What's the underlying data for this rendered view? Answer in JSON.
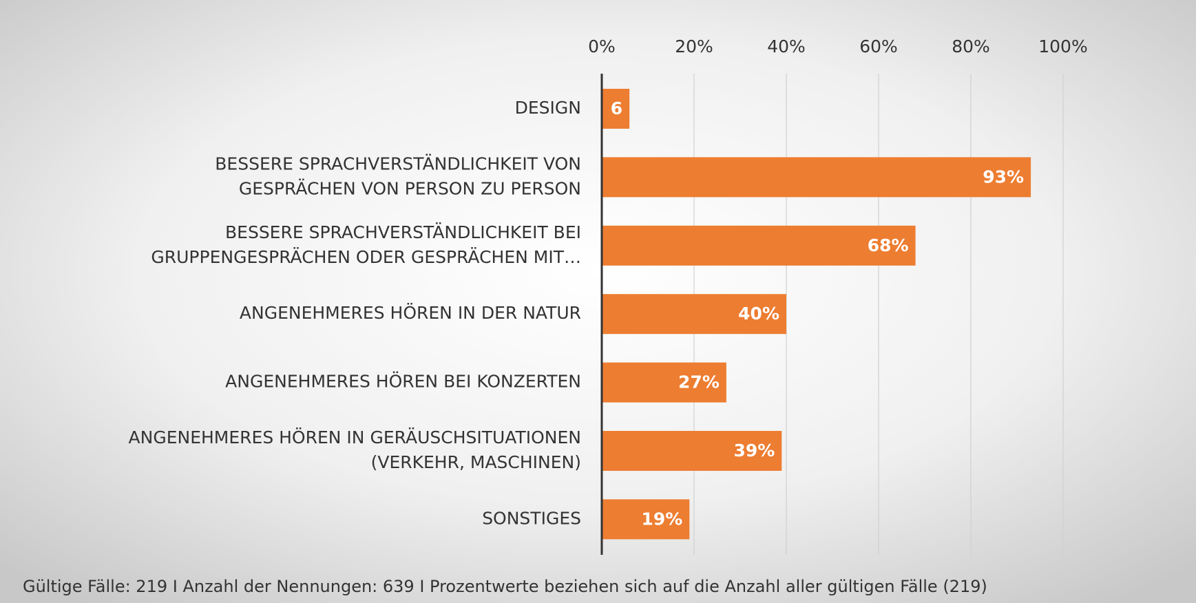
{
  "chart_data": {
    "type": "bar",
    "orientation": "horizontal",
    "categories": [
      [
        "DESIGN"
      ],
      [
        "BESSERE SPRACHVERSTÄNDLICHKEIT VON",
        "GESPRÄCHEN VON PERSON ZU PERSON"
      ],
      [
        "BESSERE SPRACHVERSTÄNDLICHKEIT BEI",
        "GRUPPENGESPRÄCHEN ODER GESPRÄCHEN MIT…"
      ],
      [
        "ANGENEHMERES HÖREN IN DER NATUR"
      ],
      [
        "ANGENEHMERES HÖREN BEI KONZERTEN"
      ],
      [
        "ANGENEHMERES HÖREN IN GERÄUSCHSITUATIONEN",
        "(VERKEHR, MASCHINEN)"
      ],
      [
        "SONSTIGES"
      ]
    ],
    "values": [
      6,
      93,
      68,
      40,
      27,
      39,
      19
    ],
    "value_labels": [
      "6",
      "93%",
      "68%",
      "40%",
      "27%",
      "39%",
      "19%"
    ],
    "color": "#ed7d31",
    "xlim": [
      0,
      100
    ],
    "xticks": [
      {
        "value": 0,
        "label": "0%"
      },
      {
        "value": 20,
        "label": "20%"
      },
      {
        "value": 40,
        "label": "40%"
      },
      {
        "value": 60,
        "label": "60%"
      },
      {
        "value": 80,
        "label": "80%"
      },
      {
        "value": 100,
        "label": "100%"
      }
    ],
    "grid": true,
    "footnote": "Gültige Fälle: 219 I Anzahl der Nennungen: 639 I Prozentwerte beziehen sich auf die Anzahl aller gültigen Fälle (219)"
  }
}
